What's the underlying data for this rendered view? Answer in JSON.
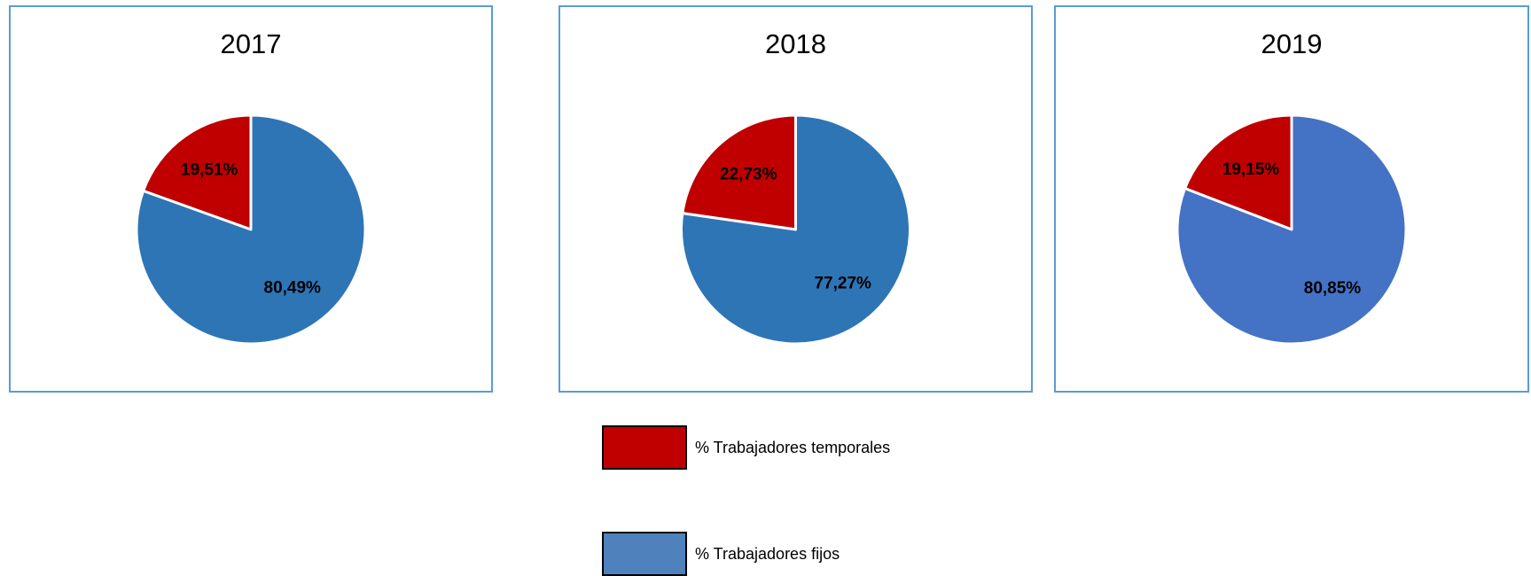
{
  "chart_data": [
    {
      "type": "pie",
      "title": "2017",
      "values": [
        19.51,
        80.49
      ],
      "value_labels": [
        "19,51%",
        "80,49%"
      ],
      "colors": [
        "#c00000",
        "#2e75b6"
      ]
    },
    {
      "type": "pie",
      "title": "2018",
      "values": [
        22.73,
        77.27
      ],
      "value_labels": [
        "22,73%",
        "77,27%"
      ],
      "colors": [
        "#c00000",
        "#2e75b6"
      ]
    },
    {
      "type": "pie",
      "title": "2019",
      "values": [
        19.15,
        80.85
      ],
      "value_labels": [
        "19,15%",
        "80,85%"
      ],
      "colors": [
        "#c00000",
        "#4472c4"
      ]
    }
  ],
  "legend": {
    "items": [
      {
        "name": "% Trabajadores temporales",
        "color": "#c00000"
      },
      {
        "name": "% Trabajadores fijos",
        "color": "#4f81bd"
      }
    ]
  }
}
